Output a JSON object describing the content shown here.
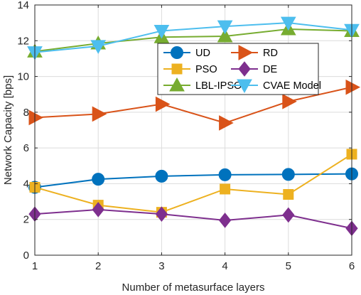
{
  "chart_data": {
    "type": "line",
    "title": "",
    "xlabel": "Number of metasurface layers",
    "ylabel": "Network Capacity [bps]",
    "x": [
      1,
      2,
      3,
      4,
      5,
      6
    ],
    "xlim": [
      1,
      6
    ],
    "ylim": [
      0,
      14
    ],
    "xticks": [
      "1",
      "2",
      "3",
      "4",
      "5",
      "6"
    ],
    "yticks": [
      "0",
      "2",
      "4",
      "6",
      "8",
      "10",
      "12",
      "14"
    ],
    "grid": true,
    "legend_position": "top-center, two columns",
    "series": [
      {
        "name": "UD",
        "color": "#0072bd",
        "marker": "circle",
        "values": [
          3.8,
          4.25,
          4.42,
          4.5,
          4.52,
          4.55
        ]
      },
      {
        "name": "RD",
        "color": "#d95319",
        "marker": "triangle-right",
        "values": [
          7.7,
          7.9,
          8.45,
          7.4,
          8.6,
          9.4
        ]
      },
      {
        "name": "PSO",
        "color": "#edb120",
        "marker": "square",
        "values": [
          3.8,
          2.8,
          2.4,
          3.7,
          3.4,
          5.65
        ]
      },
      {
        "name": "DE",
        "color": "#7e2f8e",
        "marker": "diamond",
        "values": [
          2.3,
          2.55,
          2.3,
          1.95,
          2.25,
          1.5
        ]
      },
      {
        "name": "LBL-IPSO",
        "color": "#77ac30",
        "marker": "triangle-up",
        "values": [
          11.4,
          11.85,
          12.2,
          12.25,
          12.65,
          12.55
        ]
      },
      {
        "name": "CVAE Model",
        "color": "#4dbeee",
        "marker": "triangle-down",
        "values": [
          11.35,
          11.7,
          12.55,
          12.8,
          13.0,
          12.6
        ]
      }
    ]
  }
}
